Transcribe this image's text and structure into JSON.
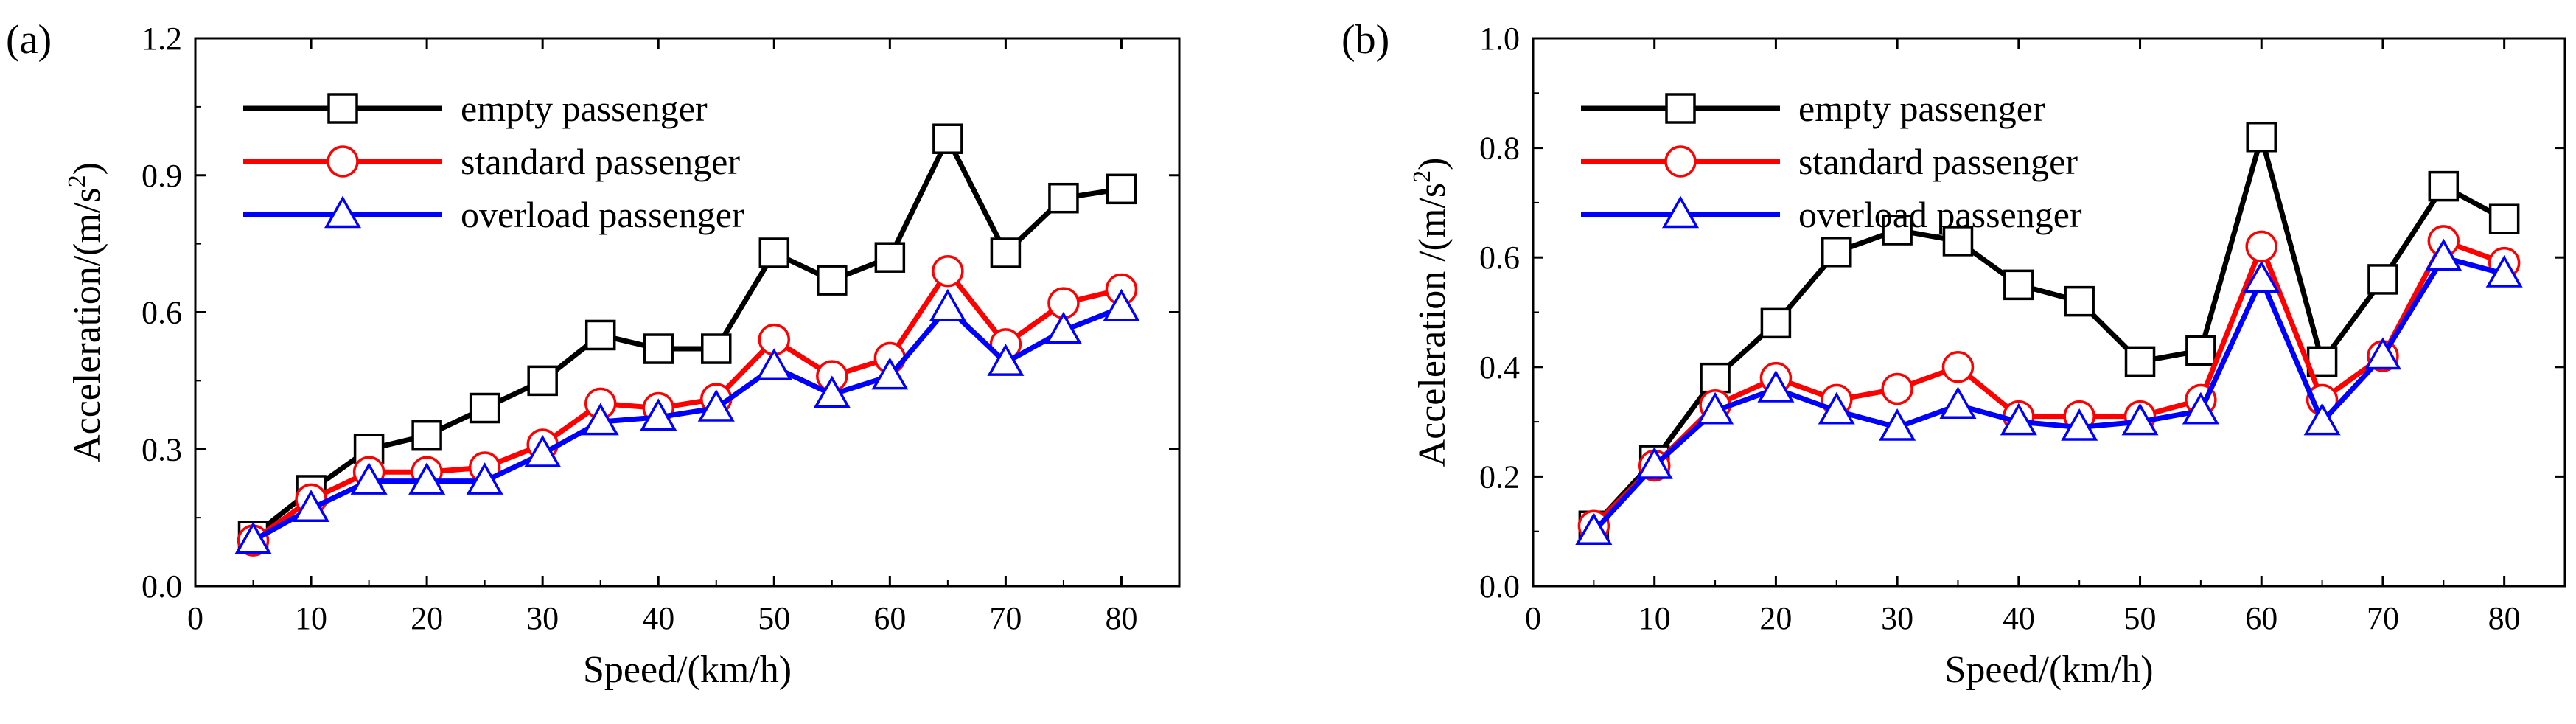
{
  "chart_data": [
    {
      "type": "line",
      "panel_label": "(a)",
      "xlabel": "Speed/(km/h)",
      "ylabel": "Acceleration/(m/s",
      "ylabel_sup": "2",
      "ylabel_end": ")",
      "xlim": [
        0,
        85
      ],
      "ylim": [
        0,
        1.2
      ],
      "xticks": [
        0,
        10,
        20,
        30,
        40,
        50,
        60,
        70,
        80
      ],
      "xtick_labels": [
        "0",
        "10",
        "20",
        "30",
        "40",
        "50",
        "60",
        "70",
        "80"
      ],
      "yticks": [
        0,
        0.3,
        0.6,
        0.9,
        1.2
      ],
      "ytick_labels": [
        "0.0",
        "0.3",
        "0.6",
        "0.9",
        "1.2"
      ],
      "legend_position": "top-left",
      "x": [
        5,
        10,
        15,
        20,
        25,
        30,
        35,
        40,
        45,
        50,
        55,
        60,
        65,
        70,
        75,
        80
      ],
      "series": [
        {
          "name": "empty passenger",
          "color": "#000000",
          "marker": "square",
          "values": [
            0.11,
            0.21,
            0.3,
            0.33,
            0.39,
            0.45,
            0.55,
            0.52,
            0.52,
            0.73,
            0.67,
            0.72,
            0.98,
            0.73,
            0.85,
            0.87
          ]
        },
        {
          "name": "standard passenger",
          "color": "#ff0000",
          "marker": "circle",
          "values": [
            0.1,
            0.19,
            0.25,
            0.25,
            0.26,
            0.31,
            0.4,
            0.39,
            0.41,
            0.54,
            0.46,
            0.5,
            0.69,
            0.53,
            0.62,
            0.65
          ]
        },
        {
          "name": "overload passenger",
          "color": "#0000ff",
          "marker": "triangle",
          "values": [
            0.1,
            0.17,
            0.23,
            0.23,
            0.23,
            0.29,
            0.36,
            0.37,
            0.39,
            0.48,
            0.42,
            0.46,
            0.61,
            0.49,
            0.56,
            0.61
          ]
        }
      ]
    },
    {
      "type": "line",
      "panel_label": "(b)",
      "xlabel": "Speed/(km/h)",
      "ylabel": "Acceleration /(m/s",
      "ylabel_sup": "2",
      "ylabel_end": ")",
      "xlim": [
        0,
        85
      ],
      "ylim": [
        0,
        1.0
      ],
      "xticks": [
        0,
        10,
        20,
        30,
        40,
        50,
        60,
        70,
        80
      ],
      "xtick_labels": [
        "0",
        "10",
        "20",
        "30",
        "40",
        "50",
        "60",
        "70",
        "80"
      ],
      "yticks": [
        0,
        0.2,
        0.4,
        0.6,
        0.8,
        1.0
      ],
      "ytick_labels": [
        "0.0",
        "0.2",
        "0.4",
        "0.6",
        "0.8",
        "1.0"
      ],
      "legend_position": "top-left",
      "x": [
        5,
        10,
        15,
        20,
        25,
        30,
        35,
        40,
        45,
        50,
        55,
        60,
        65,
        70,
        75,
        80
      ],
      "series": [
        {
          "name": "empty passenger",
          "color": "#000000",
          "marker": "square",
          "values": [
            0.11,
            0.23,
            0.38,
            0.48,
            0.61,
            0.65,
            0.63,
            0.55,
            0.52,
            0.41,
            0.43,
            0.82,
            0.41,
            0.56,
            0.73,
            0.67
          ]
        },
        {
          "name": "standard passenger",
          "color": "#ff0000",
          "marker": "circle",
          "values": [
            0.11,
            0.22,
            0.33,
            0.38,
            0.34,
            0.36,
            0.4,
            0.31,
            0.31,
            0.31,
            0.34,
            0.62,
            0.34,
            0.42,
            0.63,
            0.59
          ]
        },
        {
          "name": "overload passenger",
          "color": "#0000ff",
          "marker": "triangle",
          "values": [
            0.1,
            0.22,
            0.32,
            0.36,
            0.32,
            0.29,
            0.33,
            0.3,
            0.29,
            0.3,
            0.32,
            0.56,
            0.3,
            0.42,
            0.6,
            0.57
          ]
        }
      ]
    }
  ]
}
